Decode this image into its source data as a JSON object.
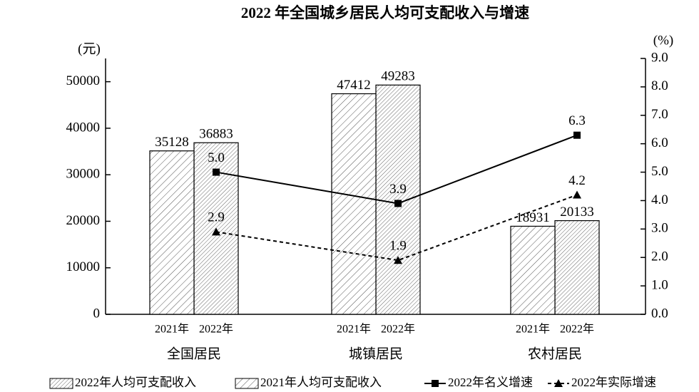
{
  "chart_data": {
    "type": "bar",
    "title": "2022 年全国城乡居民人均可支配收入与增速",
    "y_label": "(元)",
    "y2_label": "(%)",
    "categories": [
      "全国居民",
      "城镇居民",
      "农村居民"
    ],
    "x_sublabels": [
      "2021年",
      "2022年"
    ],
    "ylim": [
      0,
      55000
    ],
    "yticks": [
      0,
      10000,
      20000,
      30000,
      40000,
      50000
    ],
    "y2lim": [
      0,
      9
    ],
    "y2ticks": [
      {
        "value": 0,
        "label": "0.0"
      },
      {
        "value": 1,
        "label": "1.0"
      },
      {
        "value": 2,
        "label": "2.0"
      },
      {
        "value": 3,
        "label": "3.0"
      },
      {
        "value": 4,
        "label": "4.0"
      },
      {
        "value": 5,
        "label": "5.0"
      },
      {
        "value": 6,
        "label": "6.0"
      },
      {
        "value": 7,
        "label": "7.0"
      },
      {
        "value": 8,
        "label": "8.0"
      },
      {
        "value": 9,
        "label": "9.0"
      }
    ],
    "series": [
      {
        "name": "2022年人均可支配收入",
        "type": "bar",
        "color": "#000000",
        "values": [
          36883,
          49283,
          20133
        ]
      },
      {
        "name": "2021年人均可支配收入",
        "type": "bar",
        "color": "#000000",
        "values": [
          35128,
          47412,
          18931
        ]
      },
      {
        "name": "2022年名义增速",
        "type": "line",
        "axis": "y2",
        "color": "#000000",
        "marker": "square",
        "dash": false,
        "values": [
          5.0,
          3.9,
          6.3
        ],
        "value_labels": [
          "5.0",
          "3.9",
          "6.3"
        ]
      },
      {
        "name": "2022年实际增速",
        "type": "line",
        "axis": "y2",
        "color": "#000000",
        "marker": "triangle",
        "dash": true,
        "values": [
          2.9,
          1.9,
          4.2
        ],
        "value_labels": [
          "2.9",
          "1.9",
          "4.2"
        ]
      }
    ]
  }
}
